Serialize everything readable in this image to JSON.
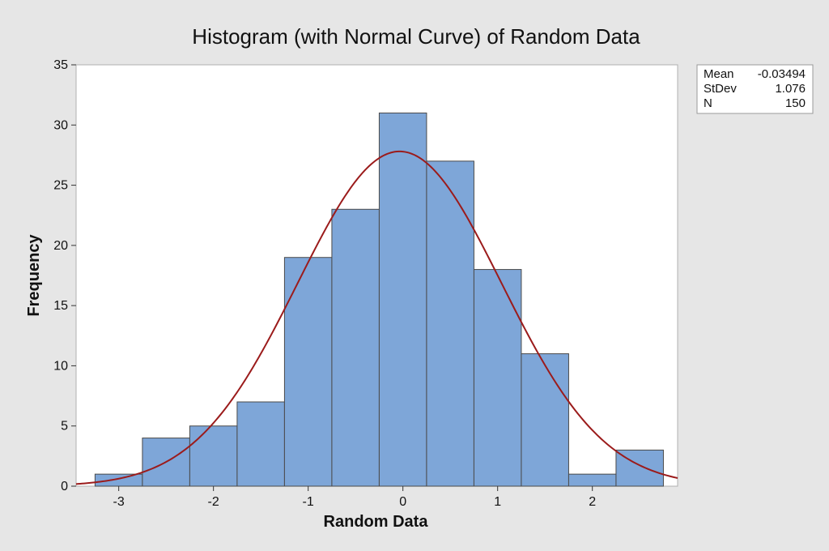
{
  "chart_data": {
    "type": "bar",
    "title": "Histogram (with Normal Curve) of Random Data",
    "xlabel": "Random Data",
    "ylabel": "Frequency",
    "bin_width": 0.5,
    "bins": [
      {
        "center": -3.0,
        "count": 1
      },
      {
        "center": -2.5,
        "count": 4
      },
      {
        "center": -2.0,
        "count": 5
      },
      {
        "center": -1.5,
        "count": 7
      },
      {
        "center": -1.0,
        "count": 19
      },
      {
        "center": -0.5,
        "count": 23
      },
      {
        "center": 0.0,
        "count": 31
      },
      {
        "center": 0.5,
        "count": 27
      },
      {
        "center": 1.0,
        "count": 18
      },
      {
        "center": 1.5,
        "count": 11
      },
      {
        "center": 2.0,
        "count": 1
      },
      {
        "center": 2.5,
        "count": 3
      }
    ],
    "xlim": [
      -3.45,
      2.9
    ],
    "ylim": [
      0,
      35
    ],
    "x_ticks": [
      -3,
      -2,
      -1,
      0,
      1,
      2
    ],
    "x_tick_labels": [
      "-3",
      "-2",
      "-1",
      "0",
      "1",
      "2"
    ],
    "y_ticks": [
      0,
      5,
      10,
      15,
      20,
      25,
      30,
      35
    ],
    "y_tick_labels": [
      "0",
      "5",
      "10",
      "15",
      "20",
      "25",
      "30",
      "35"
    ],
    "normal_curve": {
      "mean": -0.03494,
      "stdev": 1.076,
      "n": 150
    },
    "colors": {
      "bar_fill": "#7ea6d8",
      "bar_stroke": "#4a4a4a",
      "curve": "#9b1b1b",
      "background": "#e6e6e6",
      "plot_area": "#ffffff"
    },
    "legend": "top-right",
    "grid": false
  },
  "stats": {
    "mean_label": "Mean",
    "mean_value": "-0.03494",
    "stdev_label": "StDev",
    "stdev_value": "1.076",
    "n_label": "N",
    "n_value": "150"
  }
}
